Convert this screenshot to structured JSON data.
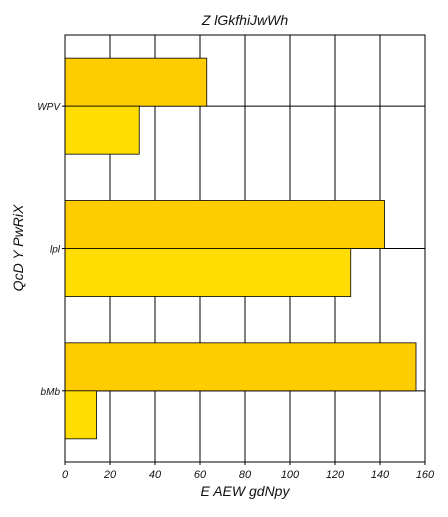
{
  "chart_data": {
    "type": "bar",
    "orientation": "horizontal",
    "title": "Z lGkfhiJwWh",
    "xlabel": "E AEW  gdNpy",
    "ylabel": "QcD Y PwRiX",
    "categories": [
      "WPV",
      "lpl",
      "bMb"
    ],
    "series": [
      {
        "values": [
          63,
          142,
          156
        ],
        "color": "#ffcc00"
      },
      {
        "values": [
          33,
          127,
          14
        ],
        "color": "#ffdd00"
      }
    ],
    "xlim": [
      0,
      160
    ],
    "xticks": [
      0,
      20,
      40,
      60,
      80,
      100,
      120,
      140,
      160
    ],
    "grid": true,
    "legend": "none"
  }
}
